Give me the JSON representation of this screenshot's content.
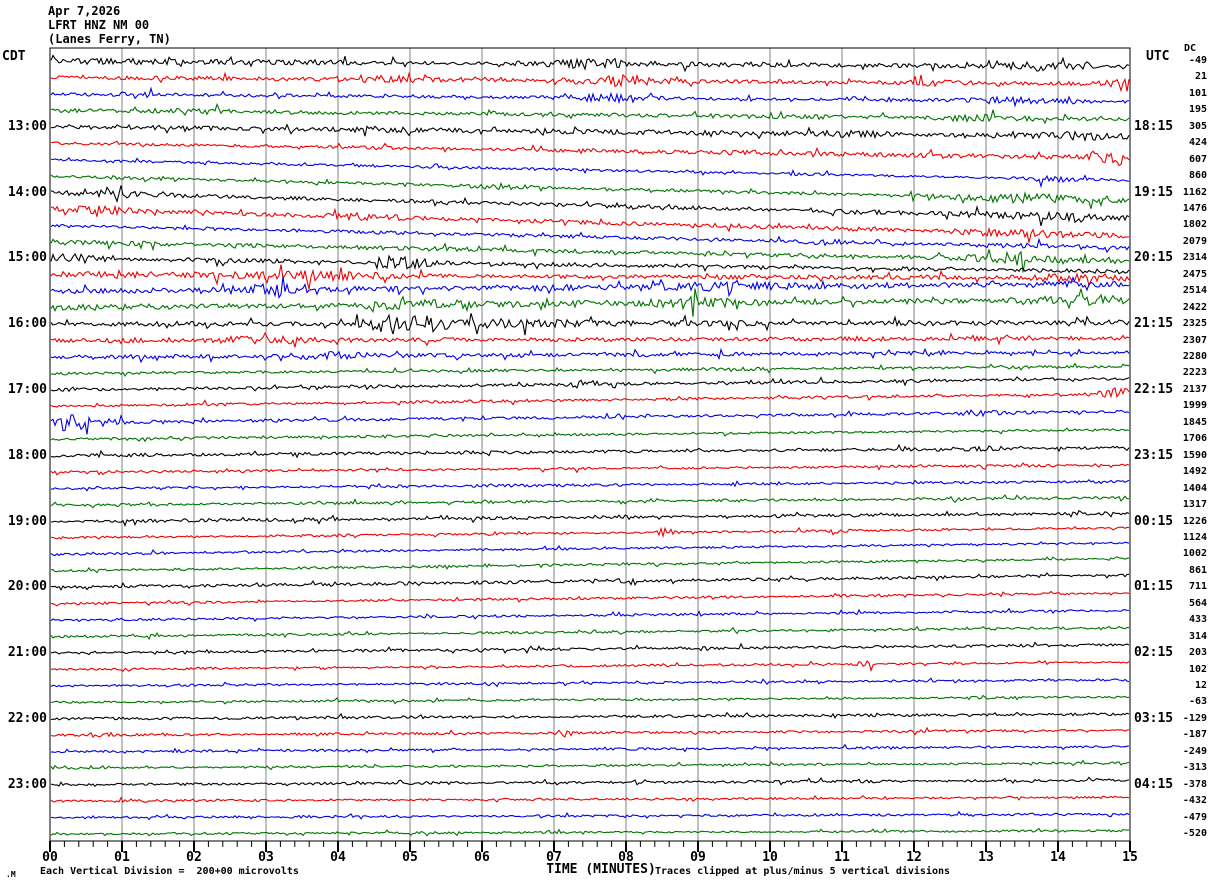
{
  "header": {
    "date": "Apr 7,2026",
    "station": "LFRT HNZ NM 00",
    "location": "(Lanes Ferry, TN)"
  },
  "axes": {
    "left_timezone": "CDT",
    "right_timezone": "UTC",
    "dc_header": "DC",
    "x_axis_title": "TIME (MINUTES)",
    "minute_labels": [
      "00",
      "01",
      "02",
      "03",
      "04",
      "05",
      "06",
      "07",
      "08",
      "09",
      "10",
      "11",
      "12",
      "13",
      "14",
      "15"
    ]
  },
  "footer": {
    "scale_note": "Each Vertical Division =  200+00 microvolts",
    "clip_note": "Traces clipped at plus/minus 5 vertical divisions",
    "watermark": ".M"
  },
  "colors": {
    "black": "#000000",
    "red": "#ee0000",
    "blue": "#0000e6",
    "green": "#007300",
    "grid": "#808080",
    "border": "#000000",
    "background": "#ffffff"
  },
  "chart_data": {
    "type": "line",
    "subtype": "helicorder-seismogram",
    "title": "LFRT HNZ NM 00 (Lanes Ferry, TN) Apr 7,2026",
    "xlabel": "TIME (MINUTES)",
    "x_range_minutes": [
      0,
      15
    ],
    "x_major_tick_minutes": 1,
    "x_minor_tick_minutes": 0.2,
    "row_duration_minutes": 15,
    "vertical_division_microvolts": 200.0,
    "clip_divisions": 5,
    "grid": true,
    "rows": [
      {
        "color": "black",
        "dc": -49,
        "cdt": null,
        "utc": null,
        "amp": 2.2,
        "bursts": [
          [
            7.5,
            0.4,
            4
          ],
          [
            1.0,
            0.3,
            2
          ],
          [
            13.7,
            0.35,
            3
          ]
        ]
      },
      {
        "color": "red",
        "dc": 21,
        "cdt": null,
        "utc": null,
        "amp": 1.6,
        "bursts": [
          [
            7.9,
            0.5,
            4.5
          ],
          [
            4.8,
            0.5,
            2.5
          ],
          [
            14.85,
            0.2,
            5
          ],
          [
            12.2,
            0.3,
            2
          ]
        ]
      },
      {
        "color": "blue",
        "dc": 101,
        "cdt": null,
        "utc": null,
        "amp": 1.4,
        "bursts": [
          [
            7.8,
            0.4,
            3.5
          ],
          [
            1.2,
            0.2,
            2.5
          ],
          [
            13.3,
            0.5,
            2.5
          ]
        ]
      },
      {
        "color": "green",
        "dc": 195,
        "cdt": null,
        "utc": null,
        "amp": 1.8,
        "bursts": [
          [
            12.9,
            0.4,
            2.5
          ],
          [
            2.0,
            0.3,
            1.5
          ]
        ]
      },
      {
        "color": "black",
        "dc": 305,
        "cdt": "13:00",
        "utc": "18:15",
        "amp": 2.2,
        "bursts": [
          [
            14.2,
            0.3,
            2.5
          ],
          [
            11.2,
            0.3,
            2
          ]
        ]
      },
      {
        "color": "red",
        "dc": 424,
        "cdt": null,
        "utc": null,
        "amp": 1.5,
        "bursts": [
          [
            12.0,
            1.8,
            1.2
          ],
          [
            14.6,
            0.3,
            3
          ]
        ]
      },
      {
        "color": "blue",
        "dc": 607,
        "cdt": null,
        "utc": null,
        "amp": 1.2,
        "bursts": [
          [
            13.9,
            0.3,
            2
          ]
        ]
      },
      {
        "color": "green",
        "dc": 860,
        "cdt": null,
        "utc": null,
        "amp": 1.5,
        "bursts": [
          [
            13.6,
            0.7,
            3.5
          ],
          [
            6.2,
            0.3,
            2
          ]
        ]
      },
      {
        "color": "black",
        "dc": 1162,
        "cdt": "14:00",
        "utc": "19:15",
        "amp": 1.8,
        "bursts": [
          [
            0.8,
            0.4,
            2.5
          ],
          [
            13.9,
            0.9,
            2.2
          ]
        ]
      },
      {
        "color": "red",
        "dc": 1476,
        "cdt": null,
        "utc": null,
        "amp": 1.8,
        "bursts": [
          [
            0.7,
            0.3,
            2.5
          ],
          [
            4.3,
            0.4,
            2
          ],
          [
            13.6,
            0.7,
            2.2
          ]
        ]
      },
      {
        "color": "blue",
        "dc": 1802,
        "cdt": null,
        "utc": null,
        "amp": 1.5,
        "bursts": [
          [
            10.8,
            0.3,
            2
          ],
          [
            13.5,
            0.5,
            1.8
          ]
        ]
      },
      {
        "color": "green",
        "dc": 2079,
        "cdt": null,
        "utc": null,
        "amp": 1.8,
        "bursts": [
          [
            13.4,
            0.6,
            3
          ]
        ]
      },
      {
        "color": "black",
        "dc": 2314,
        "cdt": "15:00",
        "utc": "20:15",
        "amp": 1.8,
        "bursts": [
          [
            4.85,
            0.25,
            6
          ],
          [
            0.3,
            0.25,
            3
          ]
        ]
      },
      {
        "color": "red",
        "dc": 2475,
        "cdt": null,
        "utc": null,
        "amp": 2.2,
        "bursts": [
          [
            3.5,
            0.9,
            2.5
          ],
          [
            0.8,
            0.3,
            2.5
          ],
          [
            14.3,
            0.4,
            2.5
          ]
        ]
      },
      {
        "color": "blue",
        "dc": 2514,
        "cdt": null,
        "utc": null,
        "amp": 2.6,
        "bursts": [
          [
            3.0,
            0.3,
            3
          ],
          [
            9.5,
            0.6,
            2
          ]
        ]
      },
      {
        "color": "green",
        "dc": 2422,
        "cdt": null,
        "utc": null,
        "amp": 2.6,
        "bursts": [
          [
            5.3,
            0.5,
            3
          ],
          [
            9.0,
            0.5,
            2.5
          ],
          [
            14.5,
            0.4,
            3
          ]
        ]
      },
      {
        "color": "black",
        "dc": 2325,
        "cdt": "16:00",
        "utc": "21:15",
        "amp": 2.2,
        "bursts": [
          [
            4.85,
            0.35,
            9
          ],
          [
            6.6,
            1.0,
            2.5
          ]
        ]
      },
      {
        "color": "red",
        "dc": 2307,
        "cdt": null,
        "utc": null,
        "amp": 1.8,
        "bursts": [
          [
            2.9,
            0.4,
            2.5
          ]
        ]
      },
      {
        "color": "blue",
        "dc": 2280,
        "cdt": null,
        "utc": null,
        "amp": 1.6,
        "bursts": [
          [
            3.9,
            0.4,
            2.5
          ]
        ]
      },
      {
        "color": "green",
        "dc": 2223,
        "cdt": null,
        "utc": null,
        "amp": 1.4,
        "bursts": []
      },
      {
        "color": "black",
        "dc": 2137,
        "cdt": "17:00",
        "utc": "22:15",
        "amp": 1.4,
        "bursts": [
          [
            7.4,
            0.15,
            3
          ]
        ]
      },
      {
        "color": "red",
        "dc": 1999,
        "cdt": null,
        "utc": null,
        "amp": 1.3,
        "bursts": [
          [
            14.85,
            0.22,
            6
          ]
        ]
      },
      {
        "color": "blue",
        "dc": 1845,
        "cdt": null,
        "utc": null,
        "amp": 1.3,
        "bursts": [
          [
            0.2,
            0.4,
            7
          ],
          [
            12.9,
            0.3,
            2
          ]
        ]
      },
      {
        "color": "green",
        "dc": 1706,
        "cdt": null,
        "utc": null,
        "amp": 1.1,
        "bursts": []
      },
      {
        "color": "black",
        "dc": 1590,
        "cdt": "18:00",
        "utc": "23:15",
        "amp": 1.4,
        "bursts": [
          [
            12.8,
            0.3,
            1.5
          ]
        ]
      },
      {
        "color": "red",
        "dc": 1492,
        "cdt": null,
        "utc": null,
        "amp": 1.1,
        "bursts": []
      },
      {
        "color": "blue",
        "dc": 1404,
        "cdt": null,
        "utc": null,
        "amp": 1.2,
        "bursts": []
      },
      {
        "color": "green",
        "dc": 1317,
        "cdt": null,
        "utc": null,
        "amp": 1.1,
        "bursts": []
      },
      {
        "color": "black",
        "dc": 1226,
        "cdt": "19:00",
        "utc": "00:15",
        "amp": 1.4,
        "bursts": []
      },
      {
        "color": "red",
        "dc": 1124,
        "cdt": null,
        "utc": null,
        "amp": 1.1,
        "bursts": [
          [
            8.55,
            0.08,
            5
          ],
          [
            10.9,
            0.08,
            3
          ]
        ]
      },
      {
        "color": "blue",
        "dc": 1002,
        "cdt": null,
        "utc": null,
        "amp": 1.1,
        "bursts": []
      },
      {
        "color": "green",
        "dc": 861,
        "cdt": null,
        "utc": null,
        "amp": 1.0,
        "bursts": []
      },
      {
        "color": "black",
        "dc": 711,
        "cdt": "20:00",
        "utc": "01:15",
        "amp": 1.4,
        "bursts": [
          [
            7.7,
            0.3,
            1.5
          ]
        ]
      },
      {
        "color": "red",
        "dc": 564,
        "cdt": null,
        "utc": null,
        "amp": 1.0,
        "bursts": []
      },
      {
        "color": "blue",
        "dc": 433,
        "cdt": null,
        "utc": null,
        "amp": 1.0,
        "bursts": []
      },
      {
        "color": "green",
        "dc": 314,
        "cdt": null,
        "utc": null,
        "amp": 1.0,
        "bursts": []
      },
      {
        "color": "black",
        "dc": 203,
        "cdt": "21:00",
        "utc": "02:15",
        "amp": 1.2,
        "bursts": []
      },
      {
        "color": "red",
        "dc": 102,
        "cdt": null,
        "utc": null,
        "amp": 1.0,
        "bursts": [
          [
            11.3,
            0.1,
            2.5
          ]
        ]
      },
      {
        "color": "blue",
        "dc": 12,
        "cdt": null,
        "utc": null,
        "amp": 1.0,
        "bursts": []
      },
      {
        "color": "green",
        "dc": -63,
        "cdt": null,
        "utc": null,
        "amp": 1.0,
        "bursts": []
      },
      {
        "color": "black",
        "dc": -129,
        "cdt": "22:00",
        "utc": "03:15",
        "amp": 1.2,
        "bursts": []
      },
      {
        "color": "red",
        "dc": -187,
        "cdt": null,
        "utc": null,
        "amp": 1.0,
        "bursts": [
          [
            7.15,
            0.08,
            3
          ]
        ]
      },
      {
        "color": "blue",
        "dc": -249,
        "cdt": null,
        "utc": null,
        "amp": 1.0,
        "bursts": []
      },
      {
        "color": "green",
        "dc": -313,
        "cdt": null,
        "utc": null,
        "amp": 1.0,
        "bursts": []
      },
      {
        "color": "black",
        "dc": -378,
        "cdt": "23:00",
        "utc": "04:15",
        "amp": 1.2,
        "bursts": []
      },
      {
        "color": "red",
        "dc": -432,
        "cdt": null,
        "utc": null,
        "amp": 1.0,
        "bursts": []
      },
      {
        "color": "blue",
        "dc": -479,
        "cdt": null,
        "utc": null,
        "amp": 1.0,
        "bursts": []
      },
      {
        "color": "green",
        "dc": -520,
        "cdt": null,
        "utc": null,
        "amp": 1.0,
        "bursts": []
      }
    ]
  }
}
